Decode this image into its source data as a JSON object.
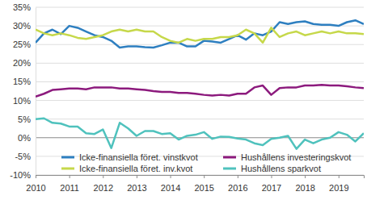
{
  "chart_data": {
    "type": "line",
    "categories": [
      "2010",
      null,
      null,
      null,
      "2011",
      null,
      null,
      null,
      "2012",
      null,
      null,
      null,
      "2013",
      null,
      null,
      null,
      "2014",
      null,
      null,
      null,
      "2015",
      null,
      null,
      null,
      "2016",
      null,
      null,
      null,
      "2017",
      null,
      null,
      null,
      "2018",
      null,
      null,
      null,
      "2019",
      null,
      null,
      null
    ],
    "series": [
      {
        "name": "Icke-finansiella föret. vinstkvot",
        "color": "#2e7fc0",
        "values": [
          25.5,
          28,
          29,
          27.8,
          30,
          29.5,
          28.5,
          27.5,
          27,
          26,
          24.2,
          24.5,
          24.5,
          24.3,
          24.2,
          24.8,
          25.5,
          25.5,
          24.5,
          24.5,
          26,
          25.8,
          25.5,
          26.5,
          27.5,
          26.3,
          28,
          27.5,
          28.5,
          31,
          30.5,
          31,
          31.2,
          30.5,
          30.3,
          30.3,
          30,
          31,
          31.5,
          30.5
        ]
      },
      {
        "name": "Hushållens investeringskvot",
        "color": "#8c1a7d",
        "values": [
          11,
          11.8,
          12.8,
          13,
          13.2,
          13.2,
          13,
          13.5,
          13.5,
          13.5,
          13.2,
          13.2,
          13,
          12.8,
          12.5,
          12.3,
          12.3,
          12,
          12,
          11.8,
          11.5,
          11.3,
          11.5,
          11.3,
          11.8,
          11.8,
          13.5,
          14,
          11.5,
          13.3,
          13.5,
          13.5,
          14,
          14,
          14.2,
          14,
          14,
          13.8,
          13.5,
          13.3
        ]
      },
      {
        "name": "Icke-finansiella föret. inv.kvot",
        "color": "#c6d84a",
        "values": [
          29,
          28,
          27.5,
          28,
          27.5,
          26.8,
          26.5,
          27,
          27.5,
          28.5,
          29,
          28.5,
          29,
          28.5,
          28.5,
          27,
          26,
          25.5,
          26.5,
          26,
          26.5,
          26.5,
          27,
          27,
          27.5,
          29,
          28,
          25.5,
          29.5,
          27,
          28,
          28.5,
          27.5,
          28,
          28.5,
          28,
          28.5,
          28,
          28,
          27.8
        ]
      },
      {
        "name": "Hushållens sparkvot",
        "color": "#4fc2bd",
        "values": [
          5,
          5.2,
          4,
          3.8,
          3,
          3,
          1.2,
          1,
          2.2,
          -2.8,
          4,
          2.5,
          0.5,
          1.8,
          1.8,
          1,
          1.2,
          -0.5,
          0.5,
          0.8,
          1.5,
          -0.3,
          0.3,
          0.2,
          -0.2,
          -0.5,
          -1.5,
          -2,
          -0.3,
          0,
          0.5,
          -3,
          -0.5,
          -1.5,
          -0.5,
          0,
          1.5,
          0.8,
          -1,
          1.2
        ]
      }
    ],
    "ylim": [
      -10,
      35
    ],
    "yticks": [
      {
        "value": -10,
        "label": "-10%"
      },
      {
        "value": -5,
        "label": "-5%"
      },
      {
        "value": 0,
        "label": "0%"
      },
      {
        "value": 5,
        "label": "5%"
      },
      {
        "value": 10,
        "label": "10%"
      },
      {
        "value": 15,
        "label": "15%"
      },
      {
        "value": 20,
        "label": "20%"
      },
      {
        "value": 25,
        "label": "25%"
      },
      {
        "value": 30,
        "label": "30%"
      },
      {
        "value": 35,
        "label": "35%"
      }
    ],
    "grid": true,
    "legend": "bottom"
  }
}
